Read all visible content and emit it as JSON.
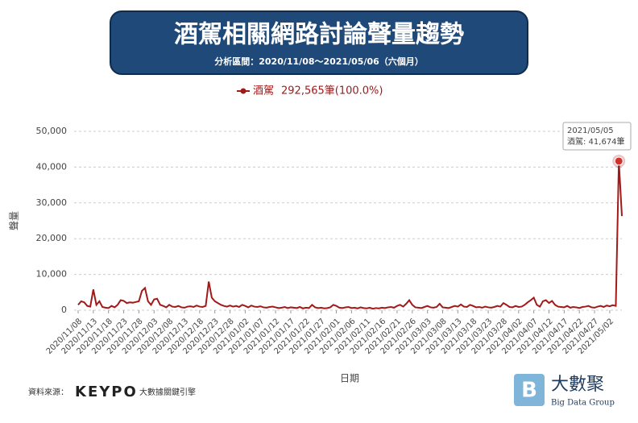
{
  "chart_data": {
    "type": "line",
    "title": "酒駕相關網路討論聲量趨勢",
    "subtitle": "分析區間：2020/11/08～2021/05/06（六個月）",
    "legend_total": "292,565筆(100.0%)",
    "y_label": "聲量",
    "x_label": "日期",
    "annotation": {
      "date": "2021/05/05",
      "text": "酒駕: 41,674筆",
      "index": 178
    },
    "source_label": "資料來源：",
    "source_brand": "KEYPO",
    "source_tagline": "大數據關鍵引擎",
    "company": "大數聚",
    "company_en": "Big Data Group",
    "categories": [
      "2020/11/08",
      null,
      null,
      null,
      null,
      "2020/11/13",
      null,
      null,
      null,
      null,
      "2020/11/18",
      null,
      null,
      null,
      null,
      "2020/11/23",
      null,
      null,
      null,
      null,
      "2020/11/28",
      null,
      null,
      null,
      null,
      "2020/12/03",
      null,
      null,
      null,
      null,
      "2020/12/08",
      null,
      null,
      null,
      null,
      "2020/12/13",
      null,
      null,
      null,
      null,
      "2020/12/18",
      null,
      null,
      null,
      null,
      "2020/12/23",
      null,
      null,
      null,
      null,
      "2020/12/28",
      null,
      null,
      null,
      null,
      "2021/01/02",
      null,
      null,
      null,
      null,
      "2021/01/07",
      null,
      null,
      null,
      null,
      "2021/01/12",
      null,
      null,
      null,
      null,
      "2021/01/17",
      null,
      null,
      null,
      null,
      "2021/01/22",
      null,
      null,
      null,
      null,
      "2021/01/27",
      null,
      null,
      null,
      null,
      "2021/02/01",
      null,
      null,
      null,
      null,
      "2021/02/06",
      null,
      null,
      null,
      null,
      "2021/02/11",
      null,
      null,
      null,
      null,
      "2021/02/16",
      null,
      null,
      null,
      null,
      "2021/02/21",
      null,
      null,
      null,
      null,
      "2021/02/26",
      null,
      null,
      null,
      null,
      "2021/03/03",
      null,
      null,
      null,
      null,
      "2021/03/08",
      null,
      null,
      null,
      null,
      "2021/03/13",
      null,
      null,
      null,
      null,
      "2021/03/18",
      null,
      null,
      null,
      null,
      "2021/03/23",
      null,
      null,
      null,
      null,
      "2021/03/28",
      null,
      null,
      null,
      null,
      "2021/04/02",
      null,
      null,
      null,
      null,
      "2021/04/07",
      null,
      null,
      null,
      null,
      "2021/04/12",
      null,
      null,
      null,
      null,
      "2021/04/17",
      null,
      null,
      null,
      null,
      "2021/04/22",
      null,
      null,
      null,
      null,
      "2021/04/27",
      null,
      null,
      null,
      null,
      "2021/05/02",
      null,
      null,
      null,
      null
    ],
    "series": [
      {
        "name": "酒駕",
        "color": "#a11a1a",
        "values": [
          1500,
          2500,
          2200,
          1200,
          1000,
          5800,
          1500,
          2500,
          900,
          700,
          600,
          1200,
          800,
          1500,
          2800,
          2600,
          2000,
          2200,
          2100,
          2300,
          2500,
          5400,
          6200,
          2500,
          1500,
          3000,
          3200,
          1500,
          1200,
          800,
          1500,
          1000,
          900,
          1200,
          800,
          700,
          1000,
          1100,
          900,
          1300,
          1000,
          900,
          1200,
          8000,
          3500,
          2500,
          2000,
          1500,
          1200,
          1000,
          1300,
          1000,
          1200,
          900,
          1500,
          1200,
          800,
          1300,
          1000,
          900,
          1100,
          800,
          700,
          900,
          1000,
          800,
          600,
          700,
          900,
          600,
          800,
          700,
          600,
          900,
          500,
          700,
          600,
          1500,
          800,
          600,
          700,
          500,
          600,
          800,
          1500,
          1200,
          700,
          600,
          800,
          900,
          600,
          700,
          500,
          800,
          600,
          500,
          700,
          400,
          600,
          500,
          700,
          600,
          800,
          900,
          700,
          1200,
          1500,
          1000,
          1800,
          2800,
          1500,
          800,
          700,
          600,
          900,
          1200,
          800,
          700,
          900,
          1800,
          800,
          700,
          600,
          900,
          1200,
          1000,
          1600,
          1000,
          900,
          1500,
          1200,
          800,
          900,
          700,
          1000,
          800,
          700,
          900,
          1200,
          1000,
          2000,
          1500,
          900,
          800,
          1200,
          900,
          1000,
          1500,
          2200,
          2800,
          3500,
          1500,
          1000,
          2500,
          2800,
          2000,
          2600,
          1500,
          1000,
          900,
          800,
          1200,
          700,
          900,
          800,
          600,
          900,
          1000,
          1200,
          800,
          700,
          1000,
          1200,
          900,
          1300,
          1100,
          1400,
          1200,
          41674,
          26300
        ]
      }
    ],
    "ylim": [
      0,
      50000
    ],
    "yticks": [
      0,
      {
        "value": 10000,
        "label": "10,000"
      },
      {
        "value": 20000,
        "label": "20,000"
      },
      {
        "value": 30000,
        "label": "30,000"
      },
      {
        "value": 40000,
        "label": "40,000"
      },
      {
        "value": 50000,
        "label": "50,000"
      }
    ],
    "grid": true
  }
}
